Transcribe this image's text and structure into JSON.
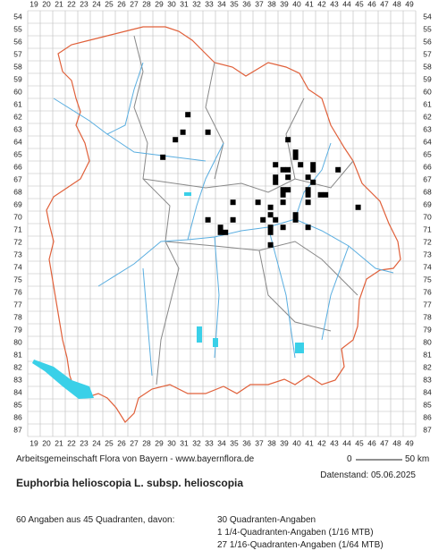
{
  "map": {
    "x_labels": [
      19,
      20,
      21,
      22,
      23,
      24,
      25,
      26,
      27,
      28,
      29,
      30,
      31,
      32,
      33,
      34,
      35,
      36,
      37,
      38,
      39,
      40,
      41,
      42,
      43,
      44,
      45,
      46,
      47,
      48,
      49
    ],
    "y_labels": [
      54,
      55,
      56,
      57,
      58,
      59,
      60,
      61,
      62,
      63,
      64,
      65,
      66,
      67,
      68,
      69,
      70,
      71,
      72,
      73,
      74,
      75,
      76,
      77,
      78,
      79,
      80,
      81,
      82,
      83,
      84,
      85,
      86,
      87
    ],
    "points": [
      {
        "x": 31.3,
        "y": 61.8
      },
      {
        "x": 30.9,
        "y": 63.2
      },
      {
        "x": 30.3,
        "y": 63.8
      },
      {
        "x": 32.9,
        "y": 63.2
      },
      {
        "x": 29.3,
        "y": 65.2
      },
      {
        "x": 39.3,
        "y": 63.8
      },
      {
        "x": 39.9,
        "y": 64.8
      },
      {
        "x": 39.9,
        "y": 65.2
      },
      {
        "x": 40.3,
        "y": 65.8
      },
      {
        "x": 41.3,
        "y": 65.8
      },
      {
        "x": 41.3,
        "y": 66.2
      },
      {
        "x": 43.3,
        "y": 66.2
      },
      {
        "x": 38.3,
        "y": 65.8
      },
      {
        "x": 38.9,
        "y": 66.2
      },
      {
        "x": 39.3,
        "y": 66.2
      },
      {
        "x": 39.3,
        "y": 66.8
      },
      {
        "x": 38.3,
        "y": 66.8
      },
      {
        "x": 38.3,
        "y": 67.2
      },
      {
        "x": 38.9,
        "y": 67.8
      },
      {
        "x": 39.3,
        "y": 67.8
      },
      {
        "x": 40.9,
        "y": 66.8
      },
      {
        "x": 40.9,
        "y": 67.8
      },
      {
        "x": 41.3,
        "y": 67.2
      },
      {
        "x": 41.9,
        "y": 68.2
      },
      {
        "x": 42.3,
        "y": 68.2
      },
      {
        "x": 40.9,
        "y": 68.2
      },
      {
        "x": 40.9,
        "y": 68.8
      },
      {
        "x": 38.9,
        "y": 68.2
      },
      {
        "x": 34.9,
        "y": 68.8
      },
      {
        "x": 36.9,
        "y": 68.8
      },
      {
        "x": 44.9,
        "y": 69.2
      },
      {
        "x": 39.9,
        "y": 69.8
      },
      {
        "x": 39.9,
        "y": 70.2
      },
      {
        "x": 37.9,
        "y": 69.2
      },
      {
        "x": 37.9,
        "y": 69.8
      },
      {
        "x": 38.3,
        "y": 70.2
      },
      {
        "x": 38.9,
        "y": 68.8
      },
      {
        "x": 37.3,
        "y": 70.2
      },
      {
        "x": 34.9,
        "y": 70.2
      },
      {
        "x": 32.9,
        "y": 70.2
      },
      {
        "x": 33.9,
        "y": 70.8
      },
      {
        "x": 33.9,
        "y": 71.2
      },
      {
        "x": 34.3,
        "y": 71.2
      },
      {
        "x": 37.9,
        "y": 70.8
      },
      {
        "x": 37.9,
        "y": 71.2
      },
      {
        "x": 38.9,
        "y": 70.8
      },
      {
        "x": 37.9,
        "y": 72.2
      },
      {
        "x": 40.9,
        "y": 70.8
      }
    ]
  },
  "credit": "Arbeitsgemeinschaft Flora von Bayern - www.bayernflora.de",
  "scale": {
    "start": "0",
    "end": "50 km"
  },
  "date": "Datenstand: 05.06.2025",
  "title": "Euphorbia helioscopia L. subsp. helioscopia",
  "stats": {
    "summary": "60 Angaben aus 45 Quadranten, davon:",
    "lines": [
      "30 Quadranten-Angaben",
      "1 1/4-Quadranten-Angaben (1/16 MTB)",
      "27 1/16-Quadranten-Angaben (1/64 MTB)"
    ]
  }
}
